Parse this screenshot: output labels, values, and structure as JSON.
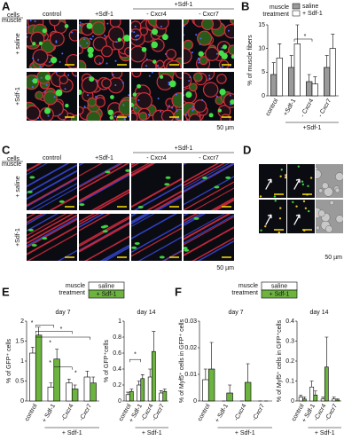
{
  "panels": {
    "a": {
      "letter": "A",
      "row_header": [
        "cells",
        "muscle"
      ],
      "columns": [
        "control",
        "+Sdf-1",
        "- Cxcr4",
        "- Cxcr7"
      ],
      "group_label": "+Sdf-1",
      "rows": [
        "+ saline",
        "+Sdf-1"
      ],
      "scale": "50 µm"
    },
    "c": {
      "letter": "C",
      "row_header": [
        "cells",
        "muscle"
      ],
      "columns": [
        "control",
        "+Sdf-1",
        "- Cxcr4",
        "- Cxcr7"
      ],
      "group_label": "+Sdf-1",
      "rows": [
        "+ saline",
        "+Sdf-1"
      ],
      "scale": "50 µm"
    },
    "d": {
      "letter": "D",
      "scale": "50 µm"
    }
  },
  "chart_data": [
    {
      "panel": "B",
      "type": "bar",
      "legend_title": [
        "muscle",
        "treatment"
      ],
      "ylabel": "% of muscle fibers",
      "categories": [
        "control",
        "+Sdf-1",
        "- Cxcr4",
        "- Cxcr7"
      ],
      "group_label": "+Sdf-1",
      "series": [
        {
          "name": "saline",
          "color": "#9a9a9a",
          "values": [
            4.5,
            6,
            3,
            6
          ],
          "errors": [
            2.5,
            2.5,
            1.5,
            2.5
          ]
        },
        {
          "name": "+ Sdf-1",
          "color": "#ffffff",
          "values": [
            8,
            11,
            2.5,
            10
          ],
          "errors": [
            3,
            4,
            1.5,
            3
          ]
        }
      ],
      "ylim": [
        0,
        15
      ],
      "yticks": [
        0,
        5,
        10,
        15
      ],
      "annotations": [
        "*"
      ]
    },
    {
      "panel": "E",
      "type": "bar",
      "legend_title": [
        "muscle",
        "treatment"
      ],
      "legend": [
        {
          "name": "saline",
          "color": "#ffffff"
        },
        {
          "name": "+ Sdf-1",
          "color": "#6cb33f"
        }
      ],
      "subplots": [
        {
          "title": "day 7",
          "ylabel": "% of GFP⁺ cells",
          "categories": [
            "control",
            "+ Sdf-1",
            "-Cxcr4",
            "-Cxcr7"
          ],
          "group_label": "+ Sdf-1",
          "ylim": [
            0,
            2
          ],
          "yticks": [
            0,
            0.5,
            1,
            1.5,
            2
          ],
          "series": [
            {
              "values": [
                1.2,
                0.35,
                0.45,
                0.6
              ],
              "errors": [
                0.15,
                0.1,
                0.1,
                0.15
              ]
            },
            {
              "values": [
                1.65,
                1.05,
                0.3,
                0.45
              ],
              "errors": [
                0.2,
                0.25,
                0.1,
                0.15
              ]
            }
          ],
          "annotations": [
            "*",
            "*",
            "*",
            "*",
            "*"
          ]
        },
        {
          "title": "day 14",
          "ylabel": "% of GFP⁺cells",
          "categories": [
            "control",
            "+ Sdf-1",
            "-Cxcr4",
            "-Cxcr7"
          ],
          "group_label": "+ Sdf-1",
          "ylim": [
            0,
            1
          ],
          "yticks": [
            0,
            0.2,
            0.4,
            0.6,
            0.8,
            1
          ],
          "series": [
            {
              "values": [
                0.08,
                0.2,
                0.3,
                0.1
              ],
              "errors": [
                0.03,
                0.05,
                0.1,
                0.03
              ]
            },
            {
              "values": [
                0.12,
                0.28,
                0.62,
                0.12
              ],
              "errors": [
                0.03,
                0.05,
                0.25,
                0.03
              ]
            }
          ],
          "annotations": [
            "*"
          ]
        }
      ]
    },
    {
      "panel": "F",
      "type": "bar",
      "legend_title": [
        "muscle",
        "treatment"
      ],
      "legend": [
        {
          "name": "saline",
          "color": "#ffffff"
        },
        {
          "name": "+ Sdf-1",
          "color": "#6cb33f"
        }
      ],
      "subplots": [
        {
          "title": "day 7",
          "ylabel": "% of Myf5⁺ cells in GFP⁺ cells",
          "categories": [
            "control",
            "+ Sdf-1",
            "-Cxcr4",
            "-Cxcr7"
          ],
          "group_label": "+ Sdf-1",
          "ylim": [
            0,
            0.03
          ],
          "yticks": [
            0,
            0.01,
            0.02,
            0.03
          ],
          "series": [
            {
              "values": [
                0.008,
                0,
                0,
                0
              ],
              "errors": [
                0.004,
                0,
                0,
                0
              ]
            },
            {
              "values": [
                0.012,
                0.003,
                0.007,
                0
              ],
              "errors": [
                0.01,
                0.003,
                0.007,
                0
              ]
            }
          ],
          "annotations": []
        },
        {
          "title": "day 14",
          "ylabel": "% of Myf5⁺ cells in GFP⁺cells",
          "categories": [
            "control",
            "+ Sdf-1",
            "-Cxcr4",
            "-Cxcr7"
          ],
          "group_label": "+ Sdf-1",
          "ylim": [
            0,
            0.4
          ],
          "yticks": [
            0,
            0.1,
            0.2,
            0.3,
            0.4
          ],
          "series": [
            {
              "values": [
                0.02,
                0.07,
                0.01,
                0.01
              ],
              "errors": [
                0.01,
                0.03,
                0.01,
                0.01
              ]
            },
            {
              "values": [
                0.01,
                0.03,
                0.17,
                0.005
              ],
              "errors": [
                0.01,
                0.02,
                0.15,
                0.005
              ]
            }
          ],
          "annotations": []
        }
      ]
    }
  ]
}
